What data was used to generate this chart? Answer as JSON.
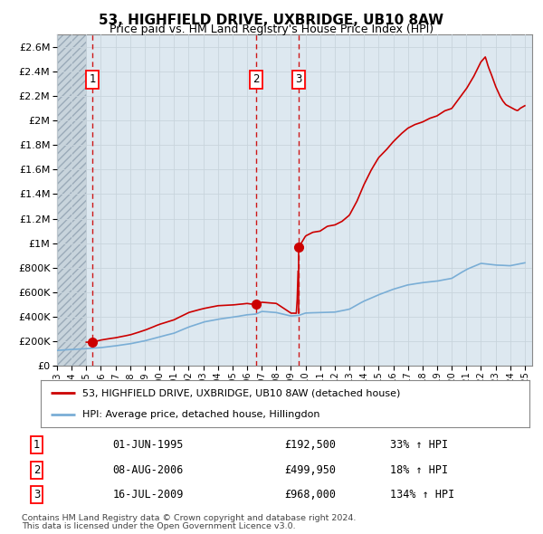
{
  "title": "53, HIGHFIELD DRIVE, UXBRIDGE, UB10 8AW",
  "subtitle": "Price paid vs. HM Land Registry's House Price Index (HPI)",
  "legend_line1": "53, HIGHFIELD DRIVE, UXBRIDGE, UB10 8AW (detached house)",
  "legend_line2": "HPI: Average price, detached house, Hillingdon",
  "footer1": "Contains HM Land Registry data © Crown copyright and database right 2024.",
  "footer2": "This data is licensed under the Open Government Licence v3.0.",
  "transactions": [
    {
      "num": 1,
      "date": "01-JUN-1995",
      "price": 192500,
      "pct": "33%",
      "dir": "↑",
      "year": 1995.42
    },
    {
      "num": 2,
      "date": "08-AUG-2006",
      "price": 499950,
      "pct": "18%",
      "dir": "↑",
      "year": 2006.6
    },
    {
      "num": 3,
      "date": "16-JUL-2009",
      "price": 968000,
      "pct": "134%",
      "dir": "↑",
      "year": 2009.54
    }
  ],
  "xmin": 1993.0,
  "xmax": 2025.5,
  "ymin": 0,
  "ymax": 2700000,
  "red_color": "#cc0000",
  "blue_color": "#7aaed6",
  "grid_color": "#c8d4dc",
  "plot_bg": "#dde8f0",
  "hatch_facecolor": "#c8d4dc"
}
